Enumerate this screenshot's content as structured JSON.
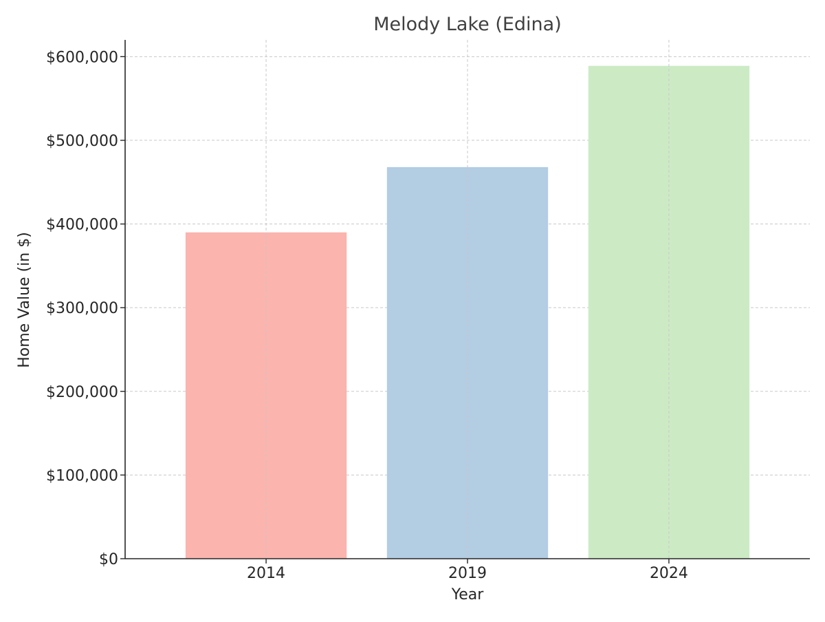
{
  "chart_data": {
    "type": "bar",
    "title": "Melody Lake (Edina)",
    "xlabel": "Year",
    "ylabel": "Home Value (in $)",
    "categories": [
      "2014",
      "2019",
      "2024"
    ],
    "values": [
      390000,
      468000,
      589000
    ],
    "colors": [
      "#fbb4ae",
      "#b3cde3",
      "#ccebc5"
    ],
    "ylim": [
      0,
      620000
    ],
    "yticks": [
      0,
      100000,
      200000,
      300000,
      400000,
      500000,
      600000
    ],
    "ytick_labels": [
      "$0",
      "$100,000",
      "$200,000",
      "$300,000",
      "$400,000",
      "$500,000",
      "$600,000"
    ],
    "grid": true,
    "legend": false
  }
}
